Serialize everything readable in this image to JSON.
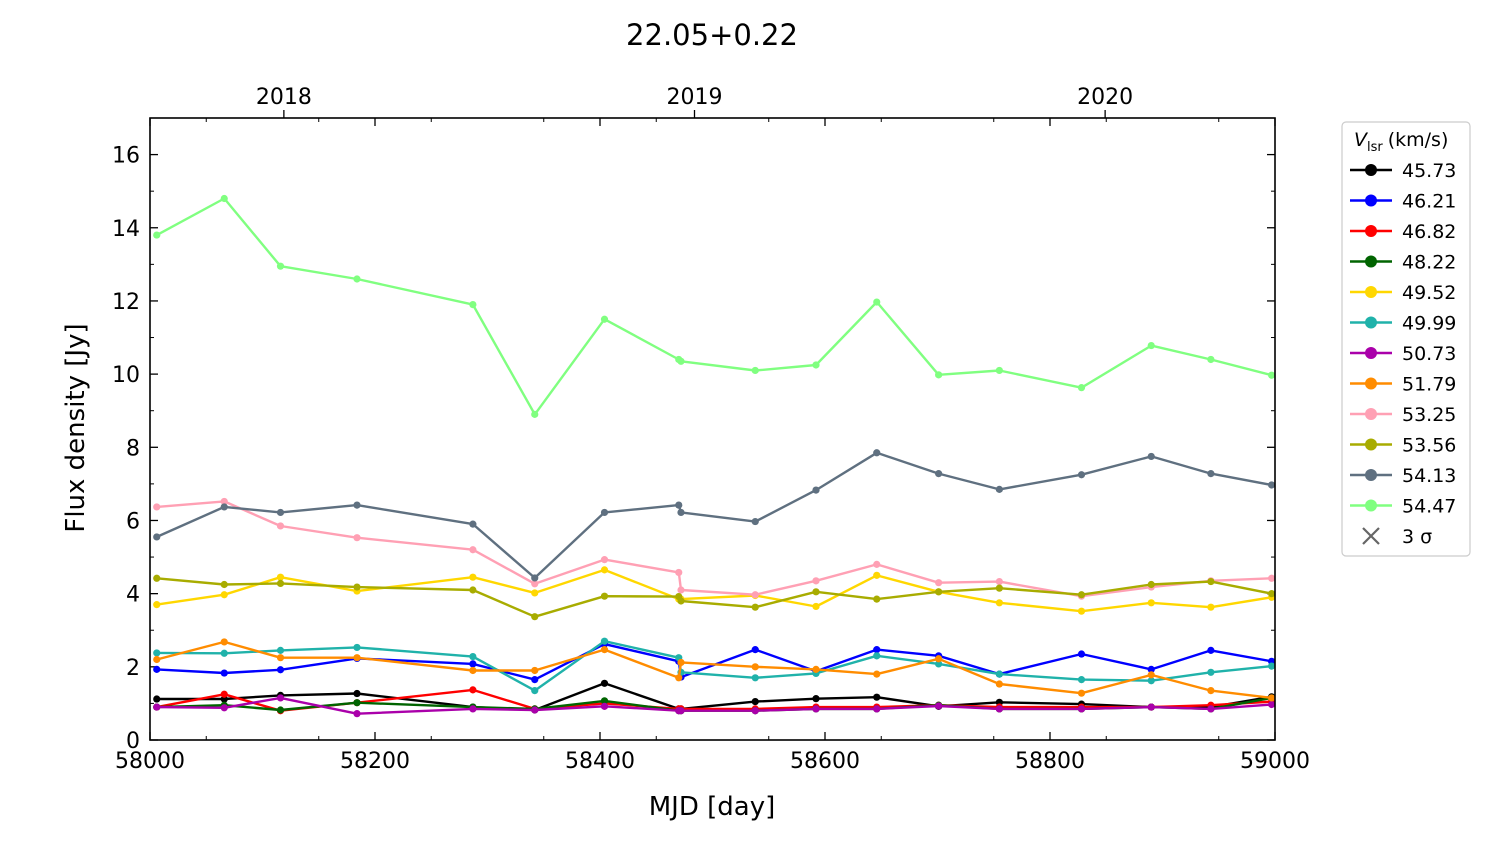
{
  "chart_data": {
    "type": "line",
    "title": "22.05+0.22",
    "xlabel": "MJD [day]",
    "ylabel": "Flux density [Jy]",
    "xlim": [
      58000,
      59000
    ],
    "ylim": [
      0,
      17
    ],
    "xticks": [
      58000,
      58200,
      58400,
      58600,
      58800,
      59000
    ],
    "yticks": [
      0,
      2,
      4,
      6,
      8,
      10,
      12,
      14,
      16
    ],
    "top_axis": {
      "ticks": [
        {
          "label": "2018",
          "mjd": 58119
        },
        {
          "label": "2019",
          "mjd": 58484
        },
        {
          "label": "2020",
          "mjd": 58849
        }
      ]
    },
    "legend": {
      "title_symbol": "V",
      "title_subscript": "lsr",
      "title_unit": "(km/s)",
      "placement": "outside-right",
      "upper_limit_label": "3 σ"
    },
    "x": [
      58006,
      58066,
      58116,
      58184,
      58287,
      58342,
      58404,
      58470,
      58472,
      58538,
      58592,
      58646,
      58701,
      58755,
      58828,
      58890,
      58943,
      58997
    ],
    "series": [
      {
        "name": "45.73",
        "color": "#000000",
        "values": [
          1.12,
          1.12,
          1.22,
          1.27,
          0.9,
          0.82,
          1.55,
          0.85,
          0.85,
          1.05,
          1.13,
          1.17,
          0.92,
          1.03,
          0.98,
          0.9,
          0.9,
          1.18
        ]
      },
      {
        "name": "46.21",
        "color": "#0000ff",
        "values": [
          1.93,
          1.83,
          1.92,
          2.23,
          2.08,
          1.65,
          2.62,
          2.15,
          1.72,
          2.47,
          1.88,
          2.47,
          2.3,
          1.8,
          2.35,
          1.93,
          2.45,
          2.15
        ]
      },
      {
        "name": "46.82",
        "color": "#ff0000",
        "values": [
          0.9,
          1.25,
          0.8,
          1.02,
          1.37,
          0.85,
          1.0,
          0.85,
          0.85,
          0.85,
          0.9,
          0.9,
          0.95,
          0.9,
          0.9,
          0.9,
          0.95,
          1.05
        ]
      },
      {
        "name": "48.22",
        "color": "#006400",
        "values": [
          0.9,
          0.95,
          0.82,
          1.02,
          0.9,
          0.85,
          1.07,
          0.8,
          0.8,
          0.8,
          0.85,
          0.85,
          0.95,
          0.85,
          0.85,
          0.9,
          0.85,
          1.15
        ]
      },
      {
        "name": "49.52",
        "color": "#ffd700",
        "values": [
          3.7,
          3.97,
          4.45,
          4.07,
          4.45,
          4.02,
          4.65,
          3.85,
          3.85,
          3.95,
          3.65,
          4.5,
          4.05,
          3.75,
          3.52,
          3.75,
          3.63,
          3.9
        ]
      },
      {
        "name": "49.99",
        "color": "#20b2aa",
        "values": [
          2.38,
          2.37,
          2.45,
          2.53,
          2.28,
          1.35,
          2.7,
          2.25,
          1.85,
          1.7,
          1.82,
          2.3,
          2.08,
          1.8,
          1.65,
          1.62,
          1.85,
          2.02
        ]
      },
      {
        "name": "50.73",
        "color": "#aa00aa",
        "values": [
          0.9,
          0.88,
          1.15,
          0.72,
          0.85,
          0.82,
          0.92,
          0.8,
          0.8,
          0.8,
          0.85,
          0.85,
          0.93,
          0.85,
          0.85,
          0.9,
          0.85,
          0.97
        ]
      },
      {
        "name": "51.79",
        "color": "#ff8c00",
        "values": [
          2.2,
          2.68,
          2.25,
          2.25,
          1.9,
          1.9,
          2.47,
          1.7,
          2.12,
          2.0,
          1.93,
          1.8,
          2.22,
          1.53,
          1.28,
          1.78,
          1.35,
          1.15
        ]
      },
      {
        "name": "53.25",
        "color": "#ffa0b4",
        "values": [
          6.37,
          6.52,
          5.85,
          5.53,
          5.2,
          4.27,
          4.93,
          4.58,
          4.1,
          3.97,
          4.35,
          4.8,
          4.3,
          4.33,
          3.93,
          4.18,
          4.35,
          4.42
        ]
      },
      {
        "name": "53.56",
        "color": "#a8ac00",
        "values": [
          4.42,
          4.25,
          4.28,
          4.18,
          4.1,
          3.37,
          3.93,
          3.92,
          3.8,
          3.63,
          4.05,
          3.85,
          4.05,
          4.15,
          3.97,
          4.25,
          4.33,
          4.0
        ]
      },
      {
        "name": "54.13",
        "color": "#5f7080",
        "values": [
          5.55,
          6.37,
          6.22,
          6.42,
          5.9,
          4.43,
          6.22,
          6.42,
          6.22,
          5.97,
          6.83,
          7.85,
          7.28,
          6.85,
          7.25,
          7.75,
          7.28,
          6.97
        ]
      },
      {
        "name": "54.47",
        "color": "#80ff80",
        "values": [
          13.8,
          14.8,
          12.95,
          12.6,
          11.9,
          8.9,
          11.5,
          10.4,
          10.35,
          10.1,
          10.25,
          11.97,
          9.98,
          10.1,
          9.63,
          10.78,
          10.4,
          9.97
        ]
      }
    ]
  }
}
